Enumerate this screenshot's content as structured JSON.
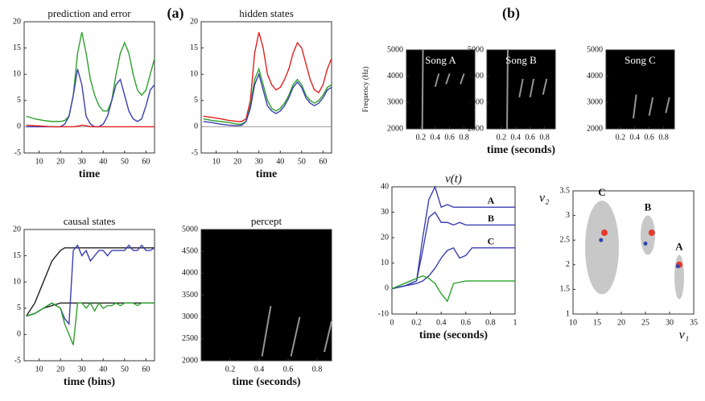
{
  "chart_data": [
    {
      "type": "line",
      "title": "prediction and error",
      "xlabel": "time",
      "xlim": [
        3,
        64
      ],
      "ylim": [
        -5,
        20
      ],
      "xticks": [
        10,
        20,
        30,
        40,
        50,
        60
      ],
      "yticks": [
        -5,
        0,
        5,
        10,
        15,
        20
      ],
      "zero_line": true,
      "x": [
        4,
        8,
        12,
        16,
        20,
        22,
        24,
        26,
        28,
        30,
        32,
        34,
        36,
        38,
        40,
        42,
        44,
        46,
        48,
        50,
        52,
        54,
        56,
        58,
        60,
        62,
        64
      ],
      "series": [
        {
          "color": "#2ca02c",
          "values": [
            2,
            1.5,
            1.2,
            1,
            1,
            1.2,
            2,
            6,
            14,
            18,
            14,
            9,
            6,
            4,
            3,
            3,
            5,
            10,
            14,
            16,
            14,
            10,
            7,
            6,
            7,
            10,
            13
          ]
        },
        {
          "color": "#3a3fb0",
          "values": [
            0,
            0,
            0,
            0,
            0,
            0.5,
            2,
            6,
            11,
            8,
            2,
            0.5,
            0,
            0,
            0.5,
            2,
            5,
            8,
            9,
            6,
            3,
            1.5,
            1,
            1.5,
            4,
            7,
            8
          ]
        },
        {
          "color": "#e02020",
          "values": [
            0.3,
            0.2,
            0.1,
            0,
            0,
            0,
            0,
            0,
            0.1,
            0.3,
            0.2,
            0,
            0,
            0,
            0,
            0,
            0,
            0,
            0,
            0,
            0,
            0,
            0,
            0,
            0,
            0,
            0
          ]
        }
      ]
    },
    {
      "type": "line",
      "title": "hidden states",
      "xlabel": "time",
      "xlim": [
        3,
        64
      ],
      "ylim": [
        -5,
        20
      ],
      "xticks": [
        10,
        20,
        30,
        40,
        50,
        60
      ],
      "yticks": [
        -5,
        0,
        5,
        10,
        15,
        20
      ],
      "zero_line": true,
      "x": [
        4,
        8,
        12,
        16,
        20,
        22,
        24,
        26,
        28,
        30,
        32,
        34,
        36,
        38,
        40,
        42,
        44,
        46,
        48,
        50,
        52,
        54,
        56,
        58,
        60,
        62,
        64
      ],
      "series": [
        {
          "color": "#e02020",
          "values": [
            2,
            1.8,
            1.5,
            1.2,
            1,
            1,
            1.5,
            5,
            14,
            18,
            15,
            10,
            8,
            7,
            7.5,
            9,
            11,
            14,
            16,
            15,
            12,
            9,
            7,
            6.5,
            8,
            11,
            13
          ]
        },
        {
          "color": "#2ca02c",
          "values": [
            1.5,
            1.2,
            1,
            0.8,
            0.5,
            0.5,
            1,
            4,
            9,
            11,
            8,
            5,
            3.5,
            3,
            3.5,
            4.5,
            6,
            8,
            9,
            8,
            6,
            5,
            4.5,
            5,
            6,
            7.5,
            8
          ]
        },
        {
          "color": "#3a3fb0",
          "values": [
            1,
            0.8,
            0.5,
            0.3,
            0.2,
            0.3,
            1,
            3.5,
            8,
            10,
            7,
            4,
            3,
            2.5,
            3,
            4,
            5.5,
            7.5,
            8.5,
            7.5,
            5.5,
            4.5,
            4,
            4.5,
            5.5,
            7,
            7.5
          ]
        }
      ]
    },
    {
      "type": "line",
      "title": "causal states",
      "xlabel": "time (bins)",
      "xlim": [
        3,
        64
      ],
      "ylim": [
        -5,
        20
      ],
      "xticks": [
        10,
        20,
        30,
        40,
        50,
        60
      ],
      "yticks": [
        -5,
        0,
        5,
        10,
        15,
        20
      ],
      "zero_line": false,
      "x": [
        4,
        8,
        12,
        16,
        20,
        22,
        24,
        26,
        28,
        30,
        32,
        34,
        36,
        38,
        40,
        42,
        44,
        46,
        48,
        50,
        52,
        54,
        56,
        58,
        60,
        62,
        64
      ],
      "series": [
        {
          "color": "#222222",
          "values": [
            3.5,
            6,
            10,
            14,
            16,
            16.5,
            16.5,
            16.5,
            16.5,
            16.5,
            16.5,
            16.5,
            16.5,
            16.5,
            16.5,
            16.5,
            16.5,
            16.5,
            16.5,
            16.5,
            16.5,
            16.5,
            16.5,
            16.5,
            16.5,
            16.5,
            16.5
          ]
        },
        {
          "color": "#222222",
          "values": [
            3.5,
            4,
            5,
            5.5,
            6,
            6,
            6,
            6,
            6,
            6,
            6,
            6,
            6,
            6,
            6,
            6,
            6,
            6,
            6,
            6,
            6,
            6,
            6,
            6,
            6,
            6,
            6
          ]
        },
        {
          "color": "#3a3fb0",
          "values": [
            3.5,
            4,
            5,
            6,
            5,
            3,
            2,
            16,
            17,
            15,
            16,
            14,
            15,
            16,
            16,
            15,
            16,
            16,
            16,
            16,
            17,
            16,
            16,
            17,
            16,
            16,
            16.5
          ]
        },
        {
          "color": "#2ca02c",
          "values": [
            3.5,
            4,
            5,
            6,
            5,
            2,
            0,
            -2,
            6,
            6,
            5,
            6,
            4.5,
            6,
            5,
            5.5,
            5.5,
            6,
            5.5,
            6,
            6,
            6,
            5.5,
            6,
            6,
            6,
            6
          ]
        }
      ]
    },
    {
      "type": "image",
      "title": "percept",
      "xlabel": "time (seconds)",
      "xlim": [
        0,
        0.9
      ],
      "ylim": [
        2000,
        5000
      ],
      "xticks": [
        0.2,
        0.4,
        0.6,
        0.8
      ],
      "yticks": [
        2000,
        2500,
        3000,
        3500,
        4000,
        4500,
        5000
      ]
    },
    {
      "type": "image",
      "title": "Song A",
      "ylabel": "Frequency (Hz)",
      "xlim": [
        0,
        0.95
      ],
      "ylim": [
        2000,
        5000
      ],
      "xticks": [
        0.2,
        0.4,
        0.6,
        0.8
      ],
      "yticks": [
        2000,
        3000,
        4000,
        5000
      ]
    },
    {
      "type": "image",
      "title": "Song B",
      "xlabel": "time (seconds)",
      "xlim": [
        0,
        0.95
      ],
      "ylim": [
        2000,
        5000
      ],
      "xticks": [
        0.2,
        0.4,
        0.6,
        0.8
      ],
      "yticks": [
        2000,
        3000,
        4000,
        5000
      ]
    },
    {
      "type": "image",
      "title": "Song C",
      "xlim": [
        0,
        0.95
      ],
      "ylim": [
        2000,
        5000
      ],
      "xticks": [
        0.2,
        0.4,
        0.6,
        0.8
      ],
      "yticks": [
        2000,
        3000,
        4000,
        5000
      ]
    },
    {
      "type": "line",
      "title": "v(t)",
      "xlabel": "time (seconds)",
      "xlim": [
        0,
        1
      ],
      "ylim": [
        -10,
        40
      ],
      "xticks": [
        0,
        0.2,
        0.4,
        0.6,
        0.8,
        1
      ],
      "yticks": [
        -10,
        0,
        10,
        20,
        30,
        40
      ],
      "zero_line": false,
      "x": [
        0,
        0.05,
        0.1,
        0.15,
        0.2,
        0.25,
        0.3,
        0.35,
        0.4,
        0.45,
        0.5,
        0.55,
        0.6,
        0.65,
        0.7,
        0.75,
        0.8,
        0.85,
        0.9,
        0.95,
        1
      ],
      "series": [
        {
          "name": "A",
          "color": "#3a3fb0",
          "values": [
            0,
            0.5,
            1,
            2,
            3,
            20,
            35,
            40,
            32,
            33,
            32,
            32,
            32,
            32,
            32,
            32,
            32,
            32,
            32,
            32,
            32
          ]
        },
        {
          "name": "B",
          "color": "#3a3fb0",
          "values": [
            0,
            0.5,
            1,
            2,
            3,
            15,
            28,
            30,
            26,
            26,
            25,
            26,
            25,
            25,
            25,
            25,
            25,
            25,
            25,
            25,
            25
          ]
        },
        {
          "name": "C",
          "color": "#3a3fb0",
          "values": [
            0,
            0.5,
            1,
            1.5,
            2,
            3,
            5,
            8,
            12,
            15,
            16,
            12,
            13,
            16,
            16,
            16,
            16,
            16,
            16,
            16,
            16
          ]
        },
        {
          "color": "#2ca02c",
          "values": [
            0,
            1,
            2,
            3,
            4,
            5,
            4,
            2,
            -2,
            -5,
            2,
            2.5,
            3,
            3,
            3,
            3,
            3,
            3,
            3,
            3,
            3
          ]
        }
      ]
    },
    {
      "type": "scatter",
      "xlabel": "v₁",
      "ylabel": "v₂",
      "xlim": [
        10,
        35
      ],
      "ylim": [
        1,
        3.5
      ],
      "xticks": [
        10,
        15,
        20,
        25,
        30,
        35
      ],
      "yticks": [
        1,
        1.5,
        2,
        2.5,
        3,
        3.5
      ],
      "ellipses": [
        {
          "label": "C",
          "cx": 16,
          "cy": 2.35,
          "rx": 3.5,
          "ry": 0.95
        },
        {
          "label": "B",
          "cx": 25.5,
          "cy": 2.6,
          "rx": 1.5,
          "ry": 0.4
        },
        {
          "label": "A",
          "cx": 32,
          "cy": 1.75,
          "rx": 1,
          "ry": 0.45
        }
      ],
      "series": [
        {
          "color": "#e8392b",
          "x": [
            16.5,
            26.3,
            32
          ],
          "values": [
            2.65,
            2.65,
            2.0
          ]
        },
        {
          "color": "#2f45b0",
          "x": [
            15.8,
            25,
            31.7
          ],
          "values": [
            2.5,
            2.43,
            1.97
          ]
        }
      ]
    }
  ],
  "labels": {
    "a": "(a)",
    "b": "(b)"
  }
}
